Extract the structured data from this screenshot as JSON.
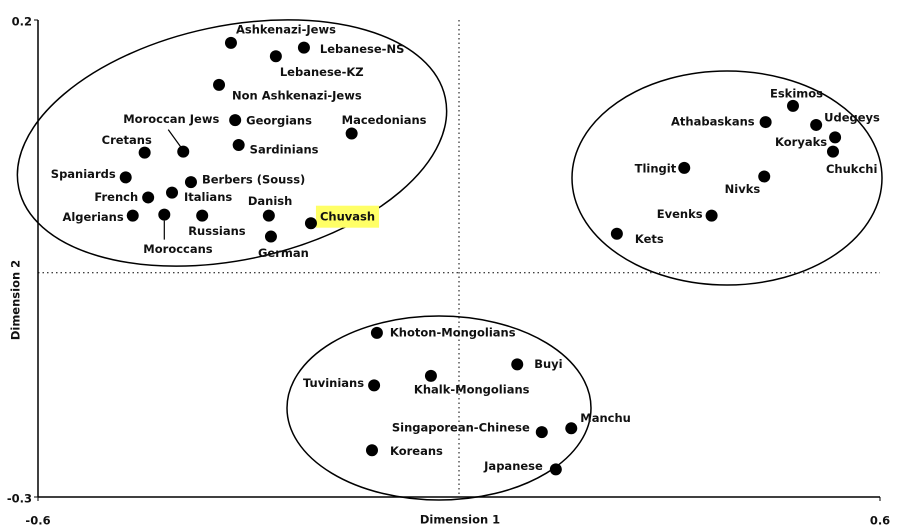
{
  "chart_data": {
    "type": "scatter",
    "xlabel": "Dimension 1",
    "ylabel": "Dimension 2",
    "xlim": [
      -0.6,
      0.6
    ],
    "ylim": [
      -0.3,
      0.2
    ],
    "xticks": [
      -0.6,
      0.6
    ],
    "yticks": [
      -0.3,
      0.2
    ],
    "reference_lines": {
      "x": 0,
      "y": -0.065
    },
    "color": "#000000",
    "highlight": "Chuvash",
    "highlight_color": "#ffff66",
    "labels": [
      "Ashkenazi-Jews",
      "Lebanese-NS",
      "Lebanese-KZ",
      "Non Ashkenazi-Jews",
      "Moroccan Jews",
      "Georgians",
      "Macedonians",
      "Cretans",
      "Sardinians",
      "Spaniards",
      "Berbers (Souss)",
      "French",
      "Italians",
      "Algerians",
      "Moroccans",
      "Russians",
      "Danish",
      "Chuvash",
      "German",
      "Eskimos",
      "Athabaskans",
      "Udegeys",
      "Koryaks",
      "Chukchi",
      "Tlingit",
      "Nivks",
      "Evenks",
      "Kets",
      "Khoton-Mongolians",
      "Buyi",
      "Tuvinians",
      "Khalk-Mongolians",
      "Singaporean-Chinese",
      "Manchu",
      "Koreans",
      "Japanese"
    ],
    "x": [
      -0.325,
      -0.221,
      -0.261,
      -0.342,
      -0.393,
      -0.319,
      -0.153,
      -0.448,
      -0.314,
      -0.475,
      -0.382,
      -0.443,
      -0.409,
      -0.465,
      -0.42,
      -0.366,
      -0.271,
      -0.211,
      -0.268,
      0.476,
      0.437,
      0.509,
      0.536,
      0.533,
      0.321,
      0.435,
      0.36,
      0.225,
      -0.117,
      0.083,
      -0.121,
      -0.04,
      0.118,
      0.16,
      -0.124,
      0.138
    ],
    "y": [
      0.176,
      0.171,
      0.162,
      0.132,
      0.062,
      0.095,
      0.081,
      0.061,
      0.069,
      0.035,
      0.03,
      0.014,
      0.019,
      -0.005,
      -0.004,
      -0.005,
      -0.005,
      -0.013,
      -0.027,
      0.11,
      0.093,
      0.09,
      0.077,
      0.062,
      0.045,
      0.036,
      -0.005,
      -0.024,
      -0.128,
      -0.161,
      -0.183,
      -0.173,
      -0.232,
      -0.228,
      -0.251,
      -0.271
    ]
  }
}
